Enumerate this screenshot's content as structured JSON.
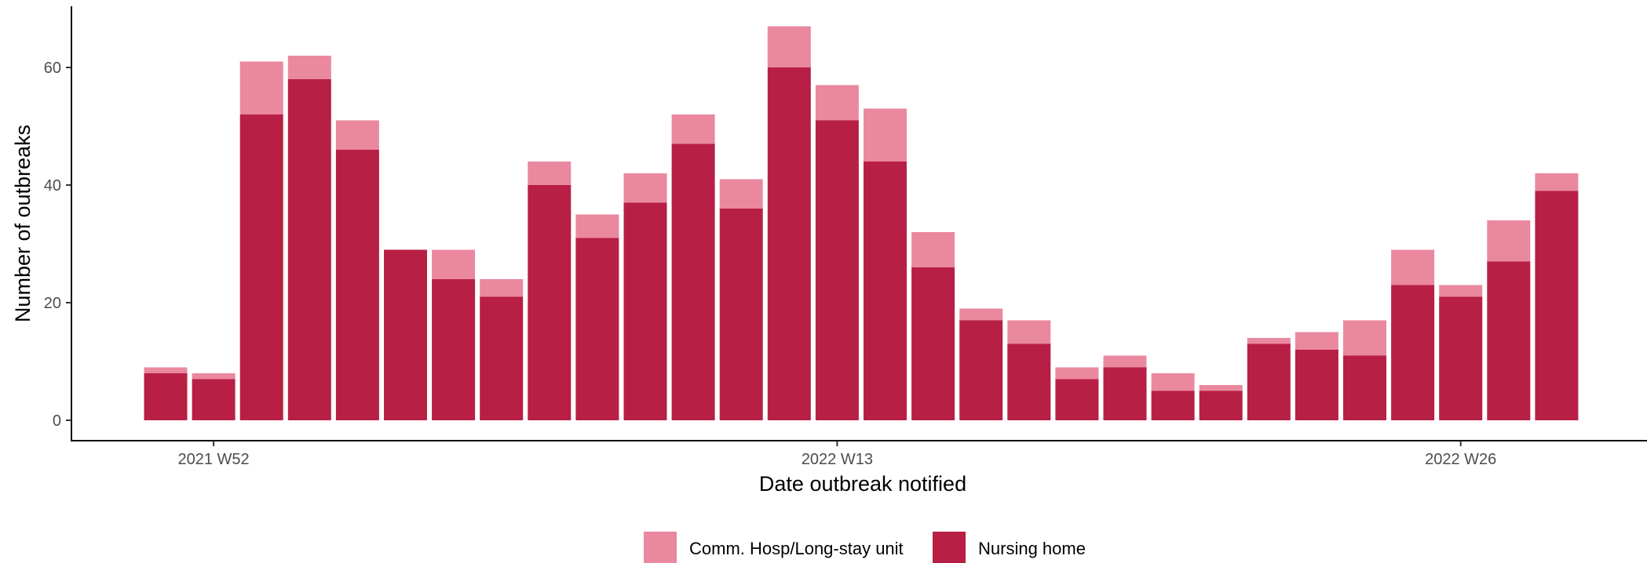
{
  "chart_data": {
    "type": "bar",
    "stacked": true,
    "xlabel": "Date outbreak notified",
    "ylabel": "Number of outbreaks",
    "ylim": [
      0,
      70
    ],
    "yticks": [
      0,
      20,
      40,
      60
    ],
    "x_tick_labels": [
      {
        "label": "2021 W52",
        "index": 1
      },
      {
        "label": "2022 W13",
        "index": 14
      },
      {
        "label": "2022 W26",
        "index": 27
      }
    ],
    "legend_position": "bottom",
    "grid": false,
    "n_bars": 30,
    "series": [
      {
        "name": "Nursing home",
        "color": "#b81f45",
        "values": [
          8,
          7,
          52,
          58,
          46,
          29,
          24,
          21,
          40,
          31,
          37,
          47,
          36,
          60,
          51,
          44,
          26,
          17,
          13,
          7,
          9,
          5,
          5,
          13,
          12,
          11,
          23,
          21,
          27,
          39
        ]
      },
      {
        "name": "Comm. Hosp/Long-stay unit",
        "color": "#ea889f",
        "values": [
          1,
          1,
          9,
          4,
          5,
          0,
          5,
          3,
          4,
          4,
          5,
          5,
          5,
          7,
          6,
          9,
          6,
          2,
          4,
          2,
          2,
          3,
          1,
          1,
          3,
          6,
          6,
          2,
          7,
          3
        ]
      }
    ],
    "legend": [
      {
        "name": "Comm. Hosp/Long-stay unit",
        "color": "#ea889f"
      },
      {
        "name": "Nursing home",
        "color": "#b81f45"
      }
    ]
  }
}
